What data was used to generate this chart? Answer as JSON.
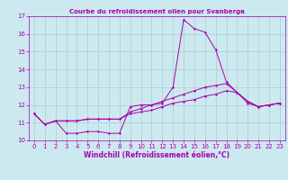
{
  "title": "Courbe du refroidissement olien pour Svanberga",
  "xlabel": "Windchill (Refroidissement éolien,°C)",
  "xlim": [
    -0.5,
    23.5
  ],
  "ylim": [
    10,
    17
  ],
  "yticks": [
    10,
    11,
    12,
    13,
    14,
    15,
    16,
    17
  ],
  "xticks": [
    0,
    1,
    2,
    3,
    4,
    5,
    6,
    7,
    8,
    9,
    10,
    11,
    12,
    13,
    14,
    15,
    16,
    17,
    18,
    19,
    20,
    21,
    22,
    23
  ],
  "background_color": "#cce9f0",
  "line_color": "#aa00aa",
  "grid_color": "#aacccc",
  "series": {
    "line1_x": [
      0,
      1,
      2,
      3,
      4,
      5,
      6,
      7,
      8,
      9,
      10,
      11,
      12,
      13,
      14,
      15,
      16,
      17,
      18,
      19,
      20,
      21,
      22,
      23
    ],
    "line1_y": [
      11.5,
      10.9,
      11.1,
      10.4,
      10.4,
      10.5,
      10.5,
      10.4,
      10.4,
      11.9,
      12.0,
      12.0,
      12.1,
      13.0,
      16.8,
      16.3,
      16.1,
      15.1,
      13.3,
      12.7,
      12.1,
      11.9,
      12.0,
      12.1
    ],
    "line2_x": [
      0,
      1,
      2,
      3,
      4,
      5,
      6,
      7,
      8,
      9,
      10,
      11,
      12,
      13,
      14,
      15,
      16,
      17,
      18,
      19,
      20,
      21,
      22,
      23
    ],
    "line2_y": [
      11.5,
      10.9,
      11.1,
      11.1,
      11.1,
      11.2,
      11.2,
      11.2,
      11.2,
      11.6,
      11.8,
      12.0,
      12.2,
      12.4,
      12.6,
      12.8,
      13.0,
      13.1,
      13.2,
      12.7,
      12.2,
      11.9,
      12.0,
      12.1
    ],
    "line3_x": [
      0,
      1,
      2,
      3,
      4,
      5,
      6,
      7,
      8,
      9,
      10,
      11,
      12,
      13,
      14,
      15,
      16,
      17,
      18,
      19,
      20,
      21,
      22,
      23
    ],
    "line3_y": [
      11.5,
      10.9,
      11.1,
      11.1,
      11.1,
      11.2,
      11.2,
      11.2,
      11.2,
      11.5,
      11.6,
      11.7,
      11.9,
      12.1,
      12.2,
      12.3,
      12.5,
      12.6,
      12.8,
      12.7,
      12.2,
      11.9,
      12.0,
      12.1
    ]
  },
  "title_fontsize": 5.0,
  "label_fontsize": 5.5,
  "tick_fontsize": 5.0
}
